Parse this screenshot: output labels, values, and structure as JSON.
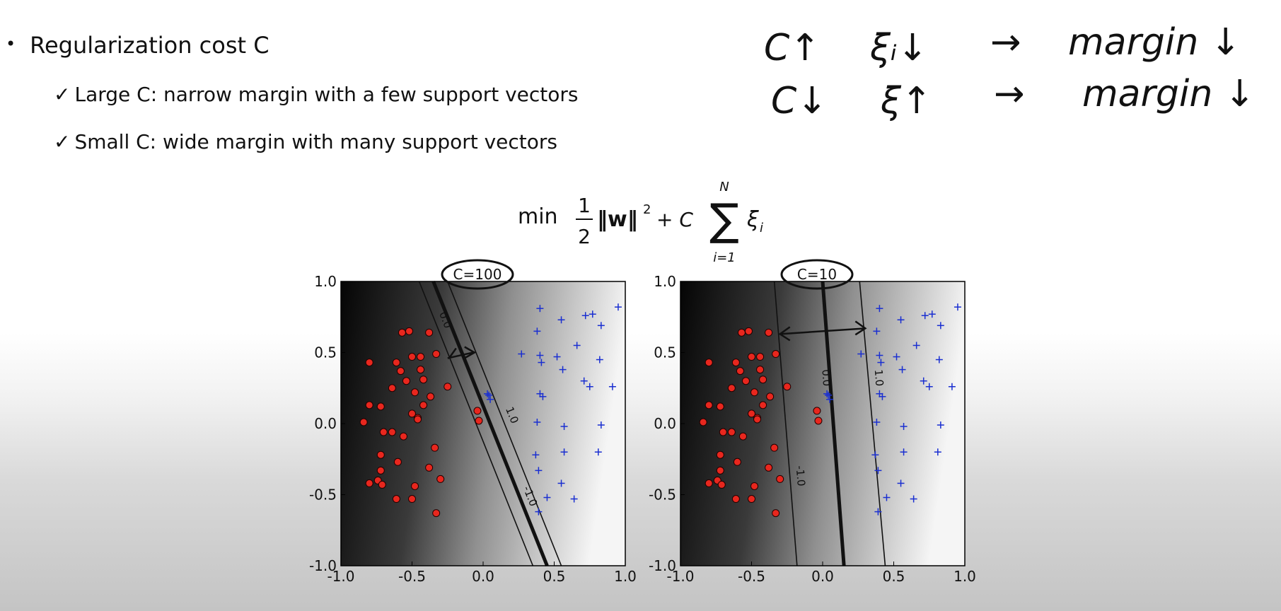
{
  "bullets": {
    "main": "Regularization cost C",
    "sub1": "Large C: narrow margin with a few support vectors",
    "sub2": "Small C: wide margin with many support vectors",
    "check_glyph": "✓"
  },
  "formula": {
    "min": "min",
    "half_num": "1",
    "half_den": "2",
    "norm": "‖w‖",
    "sq": "2",
    "plus_c": "+ C",
    "sum_top": "N",
    "sum_bottom": "i=1",
    "xi": "ξ",
    "xi_sub": "i"
  },
  "annotations": {
    "row1": [
      "C↑",
      "ξᵢ↓",
      "→",
      "margin ↓"
    ],
    "row2": [
      "C↓",
      "ξ↑",
      "→",
      "margin ↓"
    ]
  },
  "chart_data": [
    {
      "type": "scatter",
      "title": "C=100",
      "xlim": [
        -1.0,
        1.0
      ],
      "ylim": [
        -1.0,
        1.0
      ],
      "xticks": [
        "-1.0",
        "-0.5",
        "0.0",
        "0.5",
        "1.0"
      ],
      "yticks": [
        "1.0",
        "0.5",
        "0.0",
        "-0.5",
        "-1.0"
      ],
      "contour_labels": [
        "0.0",
        "1.0",
        "-1.0"
      ],
      "boundary": {
        "x_top": -0.35,
        "x_bottom": 0.45
      },
      "margin_minus": {
        "x_top": -0.45,
        "x_bottom": 0.35
      },
      "margin_plus": {
        "x_top": -0.25,
        "x_bottom": 0.55
      },
      "shading": "grayscale decision function, dark to light left to right",
      "series": [
        {
          "marker": "red circles",
          "color": "#e8271e",
          "points": [
            [
              -0.57,
              0.64
            ],
            [
              -0.52,
              0.65
            ],
            [
              -0.38,
              0.64
            ],
            [
              -0.8,
              0.43
            ],
            [
              -0.61,
              0.43
            ],
            [
              -0.58,
              0.37
            ],
            [
              -0.5,
              0.47
            ],
            [
              -0.44,
              0.47
            ],
            [
              -0.33,
              0.49
            ],
            [
              -0.54,
              0.3
            ],
            [
              -0.44,
              0.38
            ],
            [
              -0.42,
              0.31
            ],
            [
              -0.64,
              0.25
            ],
            [
              -0.48,
              0.22
            ],
            [
              -0.37,
              0.19
            ],
            [
              -0.25,
              0.26
            ],
            [
              -0.8,
              0.13
            ],
            [
              -0.72,
              0.12
            ],
            [
              -0.5,
              0.07
            ],
            [
              -0.46,
              0.04
            ],
            [
              -0.42,
              0.13
            ],
            [
              -0.84,
              0.01
            ],
            [
              -0.7,
              -0.06
            ],
            [
              -0.64,
              -0.06
            ],
            [
              -0.56,
              -0.09
            ],
            [
              -0.46,
              0.03
            ],
            [
              -0.72,
              -0.22
            ],
            [
              -0.34,
              -0.17
            ],
            [
              -0.72,
              -0.33
            ],
            [
              -0.6,
              -0.27
            ],
            [
              -0.38,
              -0.31
            ],
            [
              -0.8,
              -0.42
            ],
            [
              -0.74,
              -0.4
            ],
            [
              -0.71,
              -0.43
            ],
            [
              -0.48,
              -0.44
            ],
            [
              -0.3,
              -0.39
            ],
            [
              -0.61,
              -0.53
            ],
            [
              -0.5,
              -0.53
            ],
            [
              -0.33,
              -0.63
            ],
            [
              -0.04,
              0.09
            ],
            [
              -0.03,
              0.02
            ]
          ]
        },
        {
          "marker": "blue plus",
          "color": "#1a2fd1",
          "points": [
            [
              0.4,
              0.81
            ],
            [
              0.55,
              0.73
            ],
            [
              0.72,
              0.76
            ],
            [
              0.77,
              0.77
            ],
            [
              0.95,
              0.82
            ],
            [
              0.38,
              0.65
            ],
            [
              0.83,
              0.69
            ],
            [
              0.27,
              0.49
            ],
            [
              0.4,
              0.48
            ],
            [
              0.41,
              0.43
            ],
            [
              0.52,
              0.47
            ],
            [
              0.66,
              0.55
            ],
            [
              0.56,
              0.38
            ],
            [
              0.82,
              0.45
            ],
            [
              0.4,
              0.21
            ],
            [
              0.42,
              0.19
            ],
            [
              0.71,
              0.3
            ],
            [
              0.75,
              0.26
            ],
            [
              0.91,
              0.26
            ],
            [
              0.03,
              0.21
            ],
            [
              0.05,
              0.17
            ],
            [
              0.04,
              0.2
            ],
            [
              0.38,
              0.01
            ],
            [
              0.57,
              -0.02
            ],
            [
              0.83,
              -0.01
            ],
            [
              0.37,
              -0.22
            ],
            [
              0.57,
              -0.2
            ],
            [
              0.81,
              -0.2
            ],
            [
              0.39,
              -0.33
            ],
            [
              0.55,
              -0.42
            ],
            [
              0.45,
              -0.52
            ],
            [
              0.64,
              -0.53
            ],
            [
              0.39,
              -0.62
            ]
          ]
        }
      ]
    },
    {
      "type": "scatter",
      "title": "C=10",
      "xlim": [
        -1.0,
        1.0
      ],
      "ylim": [
        -1.0,
        1.0
      ],
      "xticks": [
        "-1.0",
        "-0.5",
        "0.0",
        "0.5",
        "1.0"
      ],
      "yticks": [
        "1.0",
        "0.5",
        "0.0",
        "-0.5",
        "-1.0"
      ],
      "contour_labels": [
        "0.0",
        "1.0",
        "-1.0"
      ],
      "boundary": {
        "x_top": 0.0,
        "x_bottom": 0.15
      },
      "margin_minus": {
        "x_top": -0.34,
        "x_bottom": -0.18
      },
      "margin_plus": {
        "x_top": 0.26,
        "x_bottom": 0.44
      },
      "shading": "grayscale decision function, dark to light left to right",
      "series": [
        {
          "marker": "red circles",
          "color": "#e8271e",
          "points": [
            [
              -0.57,
              0.64
            ],
            [
              -0.52,
              0.65
            ],
            [
              -0.38,
              0.64
            ],
            [
              -0.8,
              0.43
            ],
            [
              -0.61,
              0.43
            ],
            [
              -0.58,
              0.37
            ],
            [
              -0.5,
              0.47
            ],
            [
              -0.44,
              0.47
            ],
            [
              -0.33,
              0.49
            ],
            [
              -0.54,
              0.3
            ],
            [
              -0.44,
              0.38
            ],
            [
              -0.42,
              0.31
            ],
            [
              -0.64,
              0.25
            ],
            [
              -0.48,
              0.22
            ],
            [
              -0.37,
              0.19
            ],
            [
              -0.25,
              0.26
            ],
            [
              -0.8,
              0.13
            ],
            [
              -0.72,
              0.12
            ],
            [
              -0.5,
              0.07
            ],
            [
              -0.46,
              0.04
            ],
            [
              -0.42,
              0.13
            ],
            [
              -0.84,
              0.01
            ],
            [
              -0.7,
              -0.06
            ],
            [
              -0.64,
              -0.06
            ],
            [
              -0.56,
              -0.09
            ],
            [
              -0.46,
              0.03
            ],
            [
              -0.72,
              -0.22
            ],
            [
              -0.34,
              -0.17
            ],
            [
              -0.72,
              -0.33
            ],
            [
              -0.6,
              -0.27
            ],
            [
              -0.38,
              -0.31
            ],
            [
              -0.8,
              -0.42
            ],
            [
              -0.74,
              -0.4
            ],
            [
              -0.71,
              -0.43
            ],
            [
              -0.48,
              -0.44
            ],
            [
              -0.3,
              -0.39
            ],
            [
              -0.61,
              -0.53
            ],
            [
              -0.5,
              -0.53
            ],
            [
              -0.33,
              -0.63
            ],
            [
              -0.04,
              0.09
            ],
            [
              -0.03,
              0.02
            ]
          ]
        },
        {
          "marker": "blue plus",
          "color": "#1a2fd1",
          "points": [
            [
              0.4,
              0.81
            ],
            [
              0.55,
              0.73
            ],
            [
              0.72,
              0.76
            ],
            [
              0.77,
              0.77
            ],
            [
              0.95,
              0.82
            ],
            [
              0.38,
              0.65
            ],
            [
              0.83,
              0.69
            ],
            [
              0.27,
              0.49
            ],
            [
              0.4,
              0.48
            ],
            [
              0.41,
              0.43
            ],
            [
              0.52,
              0.47
            ],
            [
              0.66,
              0.55
            ],
            [
              0.56,
              0.38
            ],
            [
              0.82,
              0.45
            ],
            [
              0.4,
              0.21
            ],
            [
              0.42,
              0.19
            ],
            [
              0.71,
              0.3
            ],
            [
              0.75,
              0.26
            ],
            [
              0.91,
              0.26
            ],
            [
              0.03,
              0.21
            ],
            [
              0.05,
              0.17
            ],
            [
              0.04,
              0.2
            ],
            [
              0.38,
              0.01
            ],
            [
              0.57,
              -0.02
            ],
            [
              0.83,
              -0.01
            ],
            [
              0.37,
              -0.22
            ],
            [
              0.57,
              -0.2
            ],
            [
              0.81,
              -0.2
            ],
            [
              0.39,
              -0.33
            ],
            [
              0.55,
              -0.42
            ],
            [
              0.45,
              -0.52
            ],
            [
              0.64,
              -0.53
            ],
            [
              0.39,
              -0.62
            ]
          ]
        }
      ]
    }
  ]
}
